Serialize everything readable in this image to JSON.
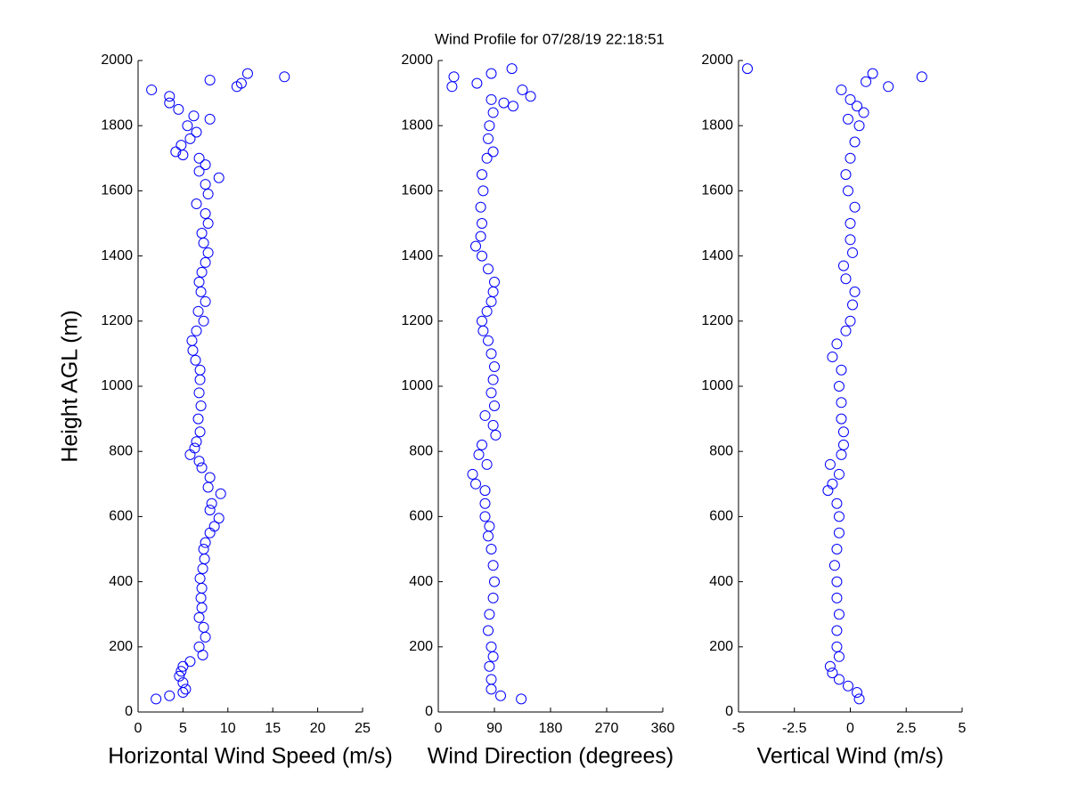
{
  "chart_data": [
    {
      "type": "scatter",
      "title": "Wind Profile for  07/28/19 22:18:51",
      "xlabel": "Horizontal Wind Speed (m/s)",
      "ylabel": "Height AGL (m)",
      "color": "#0000ff",
      "xlim": [
        0,
        25
      ],
      "xticks": [
        0,
        5,
        10,
        15,
        20,
        25
      ],
      "ylim": [
        0,
        2000
      ],
      "yticks": [
        0,
        200,
        400,
        600,
        800,
        1000,
        1200,
        1400,
        1600,
        1800,
        2000
      ],
      "x": [
        2,
        3.5,
        5,
        5.3,
        5,
        4.6,
        4.8,
        5,
        5.8,
        7.2,
        6.8,
        7.5,
        7.3,
        6.8,
        7.1,
        7,
        7.1,
        6.9,
        7.2,
        7.4,
        7.3,
        7.5,
        8,
        8.5,
        9,
        8,
        8.2,
        9.2,
        7.8,
        8,
        7.1,
        6.8,
        5.8,
        6.3,
        6.5,
        6.9,
        6.7,
        7,
        6.8,
        6.9,
        6.9,
        6.4,
        6.1,
        6,
        6.5,
        7.3,
        6.7,
        7.5,
        7,
        6.8,
        7.1,
        7.5,
        7.8,
        7.3,
        7.1,
        7.8,
        7.5,
        6.5,
        7.8,
        7.5,
        9,
        6.8,
        7.5,
        6.8,
        5,
        4.2,
        4.8,
        5.8,
        6.5,
        5.5,
        8,
        6.2,
        4.5,
        3.5,
        3.5,
        1.5,
        11,
        11.5,
        8,
        16.3,
        12.2
      ],
      "y": [
        40,
        50,
        60,
        70,
        90,
        110,
        125,
        140,
        155,
        175,
        200,
        230,
        260,
        290,
        320,
        350,
        380,
        410,
        440,
        470,
        500,
        520,
        550,
        570,
        595,
        620,
        640,
        670,
        690,
        720,
        750,
        770,
        790,
        810,
        830,
        860,
        900,
        940,
        980,
        1020,
        1050,
        1080,
        1110,
        1140,
        1170,
        1200,
        1230,
        1260,
        1290,
        1320,
        1350,
        1380,
        1410,
        1440,
        1470,
        1500,
        1530,
        1560,
        1590,
        1620,
        1640,
        1660,
        1680,
        1700,
        1710,
        1720,
        1740,
        1760,
        1780,
        1800,
        1820,
        1830,
        1850,
        1870,
        1890,
        1910,
        1920,
        1930,
        1940,
        1950,
        1960
      ]
    },
    {
      "type": "scatter",
      "xlabel": "Wind Direction (degrees)",
      "color": "#0000ff",
      "xlim": [
        0,
        360
      ],
      "xticks": [
        0,
        90,
        180,
        270,
        360
      ],
      "ylim": [
        0,
        2000
      ],
      "yticks": [
        0,
        200,
        400,
        600,
        800,
        1000,
        1200,
        1400,
        1600,
        1800,
        2000
      ],
      "x": [
        133,
        100,
        85,
        85,
        82,
        88,
        85,
        80,
        82,
        88,
        90,
        88,
        85,
        80,
        82,
        75,
        75,
        75,
        60,
        55,
        78,
        65,
        70,
        92,
        88,
        75,
        90,
        85,
        88,
        90,
        85,
        80,
        72,
        70,
        78,
        85,
        88,
        90,
        80,
        70,
        60,
        68,
        70,
        68,
        72,
        70,
        78,
        88,
        80,
        82,
        88,
        120,
        105,
        85,
        148,
        135,
        22,
        62,
        25,
        85,
        118
      ],
      "y": [
        40,
        50,
        70,
        100,
        140,
        170,
        200,
        250,
        300,
        350,
        400,
        450,
        500,
        540,
        570,
        600,
        640,
        680,
        700,
        730,
        760,
        790,
        820,
        850,
        880,
        910,
        940,
        980,
        1020,
        1060,
        1100,
        1140,
        1170,
        1200,
        1230,
        1260,
        1290,
        1320,
        1360,
        1400,
        1430,
        1460,
        1500,
        1550,
        1600,
        1650,
        1700,
        1720,
        1760,
        1800,
        1840,
        1860,
        1870,
        1880,
        1890,
        1910,
        1920,
        1930,
        1950,
        1960,
        1975
      ]
    },
    {
      "type": "scatter",
      "xlabel": "Vertical Wind (m/s)",
      "color": "#0000ff",
      "xlim": [
        -5,
        5
      ],
      "xticks": [
        -5,
        -2.5,
        0,
        2.5,
        5
      ],
      "ylim": [
        0,
        2000
      ],
      "yticks": [
        0,
        200,
        400,
        600,
        800,
        1000,
        1200,
        1400,
        1600,
        1800,
        2000
      ],
      "x": [
        0.4,
        0.3,
        -0.1,
        -0.5,
        -0.8,
        -0.9,
        -0.5,
        -0.6,
        -0.6,
        -0.5,
        -0.6,
        -0.6,
        -0.7,
        -0.6,
        -0.5,
        -0.5,
        -0.6,
        -1,
        -0.8,
        -0.5,
        -0.9,
        -0.4,
        -0.3,
        -0.3,
        -0.4,
        -0.4,
        -0.5,
        -0.4,
        -0.8,
        -0.6,
        -0.2,
        0,
        0.1,
        0.2,
        -0.2,
        -0.3,
        0.1,
        0,
        0,
        0.2,
        -0.1,
        -0.2,
        0,
        0.2,
        0.4,
        -0.1,
        0.6,
        0.3,
        0,
        -0.4,
        1.7,
        0.7,
        3.2,
        1,
        -4.6
      ],
      "y": [
        40,
        60,
        80,
        100,
        120,
        140,
        170,
        200,
        250,
        300,
        350,
        400,
        450,
        500,
        550,
        600,
        640,
        680,
        700,
        730,
        760,
        790,
        820,
        860,
        900,
        950,
        1000,
        1050,
        1090,
        1130,
        1170,
        1200,
        1250,
        1290,
        1330,
        1370,
        1410,
        1450,
        1500,
        1550,
        1600,
        1650,
        1700,
        1750,
        1800,
        1820,
        1840,
        1860,
        1880,
        1910,
        1920,
        1935,
        1950,
        1960,
        1975
      ]
    }
  ]
}
